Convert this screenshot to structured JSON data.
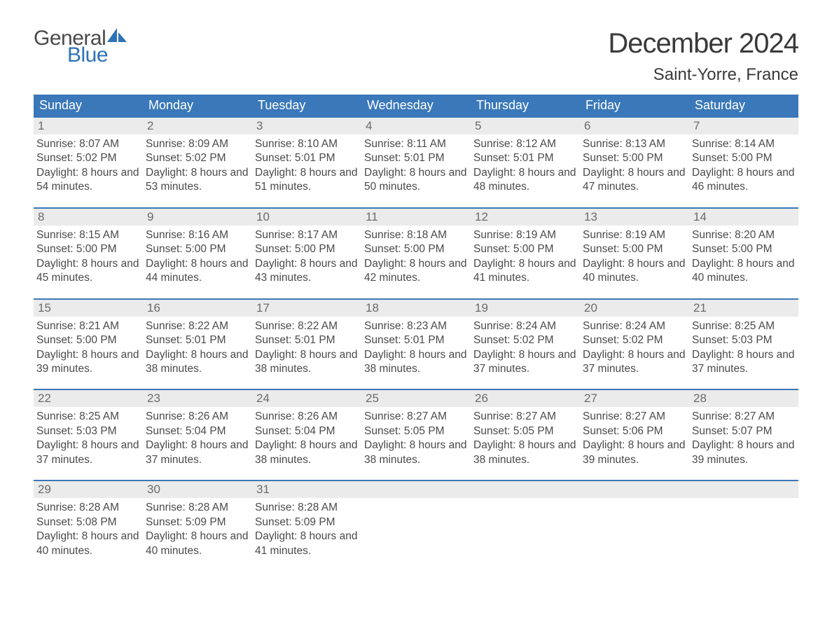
{
  "colors": {
    "primary": "#3a78b9",
    "header_bg": "#3a78b9",
    "header_text": "#ffffff",
    "daynum_bg": "#ebebeb",
    "daynum_text": "#6b6b6b",
    "body_text": "#4a4a4a",
    "page_bg": "#ffffff",
    "week_border": "#3a78b9",
    "logo_gray": "#4a4a4a",
    "logo_blue": "#2d72b8"
  },
  "logo": {
    "line1": "General",
    "line2": "Blue"
  },
  "title": "December 2024",
  "location": "Saint-Yorre, France",
  "weekdays": [
    "Sunday",
    "Monday",
    "Tuesday",
    "Wednesday",
    "Thursday",
    "Friday",
    "Saturday"
  ],
  "labels": {
    "sunrise": "Sunrise:",
    "sunset": "Sunset:",
    "daylight": "Daylight:"
  },
  "weeks": [
    [
      {
        "n": "1",
        "sunrise": "8:07 AM",
        "sunset": "5:02 PM",
        "daylight": "8 hours and 54 minutes."
      },
      {
        "n": "2",
        "sunrise": "8:09 AM",
        "sunset": "5:02 PM",
        "daylight": "8 hours and 53 minutes."
      },
      {
        "n": "3",
        "sunrise": "8:10 AM",
        "sunset": "5:01 PM",
        "daylight": "8 hours and 51 minutes."
      },
      {
        "n": "4",
        "sunrise": "8:11 AM",
        "sunset": "5:01 PM",
        "daylight": "8 hours and 50 minutes."
      },
      {
        "n": "5",
        "sunrise": "8:12 AM",
        "sunset": "5:01 PM",
        "daylight": "8 hours and 48 minutes."
      },
      {
        "n": "6",
        "sunrise": "8:13 AM",
        "sunset": "5:00 PM",
        "daylight": "8 hours and 47 minutes."
      },
      {
        "n": "7",
        "sunrise": "8:14 AM",
        "sunset": "5:00 PM",
        "daylight": "8 hours and 46 minutes."
      }
    ],
    [
      {
        "n": "8",
        "sunrise": "8:15 AM",
        "sunset": "5:00 PM",
        "daylight": "8 hours and 45 minutes."
      },
      {
        "n": "9",
        "sunrise": "8:16 AM",
        "sunset": "5:00 PM",
        "daylight": "8 hours and 44 minutes."
      },
      {
        "n": "10",
        "sunrise": "8:17 AM",
        "sunset": "5:00 PM",
        "daylight": "8 hours and 43 minutes."
      },
      {
        "n": "11",
        "sunrise": "8:18 AM",
        "sunset": "5:00 PM",
        "daylight": "8 hours and 42 minutes."
      },
      {
        "n": "12",
        "sunrise": "8:19 AM",
        "sunset": "5:00 PM",
        "daylight": "8 hours and 41 minutes."
      },
      {
        "n": "13",
        "sunrise": "8:19 AM",
        "sunset": "5:00 PM",
        "daylight": "8 hours and 40 minutes."
      },
      {
        "n": "14",
        "sunrise": "8:20 AM",
        "sunset": "5:00 PM",
        "daylight": "8 hours and 40 minutes."
      }
    ],
    [
      {
        "n": "15",
        "sunrise": "8:21 AM",
        "sunset": "5:00 PM",
        "daylight": "8 hours and 39 minutes."
      },
      {
        "n": "16",
        "sunrise": "8:22 AM",
        "sunset": "5:01 PM",
        "daylight": "8 hours and 38 minutes."
      },
      {
        "n": "17",
        "sunrise": "8:22 AM",
        "sunset": "5:01 PM",
        "daylight": "8 hours and 38 minutes."
      },
      {
        "n": "18",
        "sunrise": "8:23 AM",
        "sunset": "5:01 PM",
        "daylight": "8 hours and 38 minutes."
      },
      {
        "n": "19",
        "sunrise": "8:24 AM",
        "sunset": "5:02 PM",
        "daylight": "8 hours and 37 minutes."
      },
      {
        "n": "20",
        "sunrise": "8:24 AM",
        "sunset": "5:02 PM",
        "daylight": "8 hours and 37 minutes."
      },
      {
        "n": "21",
        "sunrise": "8:25 AM",
        "sunset": "5:03 PM",
        "daylight": "8 hours and 37 minutes."
      }
    ],
    [
      {
        "n": "22",
        "sunrise": "8:25 AM",
        "sunset": "5:03 PM",
        "daylight": "8 hours and 37 minutes."
      },
      {
        "n": "23",
        "sunrise": "8:26 AM",
        "sunset": "5:04 PM",
        "daylight": "8 hours and 37 minutes."
      },
      {
        "n": "24",
        "sunrise": "8:26 AM",
        "sunset": "5:04 PM",
        "daylight": "8 hours and 38 minutes."
      },
      {
        "n": "25",
        "sunrise": "8:27 AM",
        "sunset": "5:05 PM",
        "daylight": "8 hours and 38 minutes."
      },
      {
        "n": "26",
        "sunrise": "8:27 AM",
        "sunset": "5:05 PM",
        "daylight": "8 hours and 38 minutes."
      },
      {
        "n": "27",
        "sunrise": "8:27 AM",
        "sunset": "5:06 PM",
        "daylight": "8 hours and 39 minutes."
      },
      {
        "n": "28",
        "sunrise": "8:27 AM",
        "sunset": "5:07 PM",
        "daylight": "8 hours and 39 minutes."
      }
    ],
    [
      {
        "n": "29",
        "sunrise": "8:28 AM",
        "sunset": "5:08 PM",
        "daylight": "8 hours and 40 minutes."
      },
      {
        "n": "30",
        "sunrise": "8:28 AM",
        "sunset": "5:09 PM",
        "daylight": "8 hours and 40 minutes."
      },
      {
        "n": "31",
        "sunrise": "8:28 AM",
        "sunset": "5:09 PM",
        "daylight": "8 hours and 41 minutes."
      },
      null,
      null,
      null,
      null
    ]
  ]
}
